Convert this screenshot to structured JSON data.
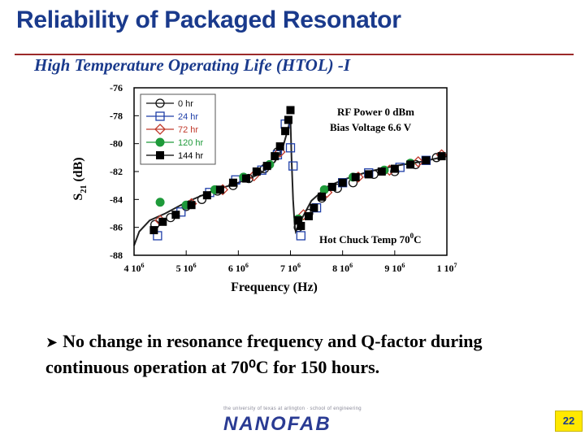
{
  "slide": {
    "title": "Reliability of Packaged Resonator",
    "subtitle": "High Temperature Operating Life (HTOL) -I",
    "bullet": "No change in resonance frequency and Q-factor during continuous operation at 70⁰C for 150 hours.",
    "logo_text": "NANOFAB",
    "logo_small_text": "the university of texas at arlington · school of engineering",
    "page_number": "22",
    "colors": {
      "title": "#1a3a8c",
      "rule": "#9c2a2a",
      "page_badge": "#ffe800"
    }
  },
  "chart_data": {
    "type": "scatter",
    "title": "",
    "xlabel": "Frequency (Hz)",
    "ylabel_main": "S",
    "ylabel_sub": "21",
    "ylabel_unit": " (dB)",
    "xlim": [
      4000000,
      10000000
    ],
    "ylim": [
      -88,
      -76
    ],
    "x_ticks": [
      {
        "value": 4000000,
        "mant": "4 10",
        "exp": "6"
      },
      {
        "value": 5000000,
        "mant": "5 10",
        "exp": "6"
      },
      {
        "value": 6000000,
        "mant": "6 10",
        "exp": "6"
      },
      {
        "value": 7000000,
        "mant": "7 10",
        "exp": "6"
      },
      {
        "value": 8000000,
        "mant": "8 10",
        "exp": "6"
      },
      {
        "value": 9000000,
        "mant": "9 10",
        "exp": "6"
      },
      {
        "value": 10000000,
        "mant": "1 10",
        "exp": "7"
      }
    ],
    "y_ticks": [
      {
        "value": -76,
        "label": "-76"
      },
      {
        "value": -78,
        "label": "-78"
      },
      {
        "value": -80,
        "label": "-80"
      },
      {
        "value": -82,
        "label": "-82"
      },
      {
        "value": -84,
        "label": "-84"
      },
      {
        "value": -86,
        "label": "-86"
      },
      {
        "value": -88,
        "label": "-88"
      }
    ],
    "annotations": {
      "rf_power": "RF Power 0 dBm",
      "bias_voltage": "Bias Voltage 6.6 V",
      "temp_main": "Hot Chuck Temp 70",
      "temp_sup": "0",
      "temp_unit": "C"
    },
    "legend_position": "top-left",
    "grid": false,
    "curve": {
      "x": [
        4000000,
        4100000,
        4300000,
        4600000,
        5000000,
        5500000,
        6000000,
        6400000,
        6700000,
        6850000,
        6950000,
        7000000,
        7020000,
        7050000,
        7080000,
        7100000,
        7200000,
        7400000,
        7700000,
        8000000,
        8500000,
        9000000,
        9500000,
        10000000
      ],
      "y": [
        -87.3,
        -86.3,
        -85.5,
        -85.0,
        -84.2,
        -83.4,
        -82.8,
        -82.2,
        -81.3,
        -80.3,
        -79.0,
        -78.2,
        -81.0,
        -84.0,
        -85.8,
        -86.3,
        -85.5,
        -84.1,
        -83.1,
        -82.6,
        -82.0,
        -81.6,
        -81.3,
        -80.9
      ]
    },
    "series": [
      {
        "name": "0 hr",
        "marker": "circle-open",
        "color": "#111111",
        "x": [
          4400000,
          4700000,
          5000000,
          5300000,
          5600000,
          5900000,
          6200000,
          6500000,
          6750000,
          7150000,
          7350000,
          7600000,
          7900000,
          8200000,
          8600000,
          9000000,
          9400000,
          9800000
        ],
        "y": [
          -85.8,
          -85.3,
          -84.5,
          -84.0,
          -83.4,
          -83.0,
          -82.5,
          -81.8,
          -80.6,
          -86.0,
          -85.0,
          -83.9,
          -83.2,
          -82.8,
          -82.2,
          -82.0,
          -81.5,
          -81.0
        ]
      },
      {
        "name": "24 hr",
        "marker": "square-open",
        "color": "#1f3fa8",
        "x": [
          4450000,
          4900000,
          5450000,
          5950000,
          6450000,
          6750000,
          6900000,
          7000000,
          7050000,
          7200000,
          7500000,
          8000000,
          8500000,
          9100000,
          9600000
        ],
        "y": [
          -86.6,
          -84.9,
          -83.5,
          -82.6,
          -81.9,
          -80.8,
          -78.6,
          -80.3,
          -81.6,
          -86.6,
          -84.6,
          -82.8,
          -82.1,
          -81.7,
          -81.2
        ]
      },
      {
        "name": "72 hr",
        "marker": "diamond-open",
        "color": "#c0392b",
        "x": [
          4500000,
          5100000,
          5700000,
          6300000,
          6800000,
          7250000,
          7700000,
          8300000,
          8900000,
          9450000,
          9900000
        ],
        "y": [
          -85.5,
          -84.3,
          -83.3,
          -82.3,
          -80.6,
          -85.1,
          -83.5,
          -82.4,
          -81.9,
          -81.3,
          -80.8
        ]
      },
      {
        "name": "120 hr",
        "marker": "circle-filled",
        "color": "#1e9a3a",
        "x": [
          4500000,
          5000000,
          5550000,
          6100000,
          6600000,
          7150000,
          7650000,
          8200000,
          8800000,
          9300000
        ],
        "y": [
          -84.2,
          -84.4,
          -83.3,
          -82.4,
          -81.5,
          -85.4,
          -83.3,
          -82.4,
          -81.9,
          -81.4
        ]
      },
      {
        "name": "144 hr",
        "marker": "square-filled",
        "color": "#000000",
        "x": [
          4380000,
          4550000,
          4800000,
          5100000,
          5400000,
          5650000,
          5900000,
          6150000,
          6350000,
          6550000,
          6700000,
          6800000,
          6900000,
          6960000,
          7000000,
          7150000,
          7200000,
          7350000,
          7450000,
          7600000,
          7800000,
          8000000,
          8250000,
          8500000,
          8750000,
          9000000,
          9300000,
          9600000,
          9900000
        ],
        "y": [
          -86.2,
          -85.6,
          -85.1,
          -84.4,
          -83.7,
          -83.3,
          -82.8,
          -82.5,
          -82.0,
          -81.6,
          -80.9,
          -80.2,
          -79.1,
          -78.3,
          -77.6,
          -85.5,
          -85.9,
          -85.2,
          -84.6,
          -83.8,
          -83.1,
          -82.8,
          -82.4,
          -82.2,
          -82.0,
          -81.8,
          -81.5,
          -81.2,
          -80.9
        ]
      }
    ]
  }
}
